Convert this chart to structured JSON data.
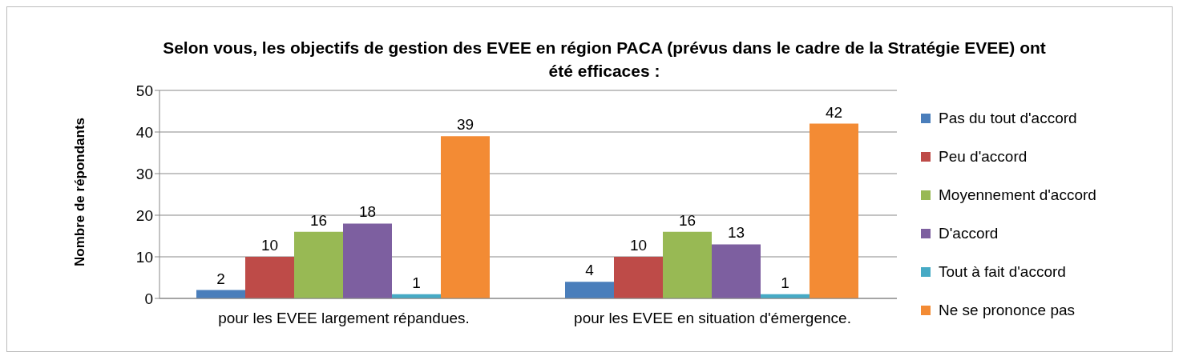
{
  "chart_data": {
    "type": "bar",
    "title": "Selon vous, les objectifs de gestion des EVEE en région PACA (prévus dans le cadre de la Stratégie EVEE) ont été efficaces :",
    "ylabel": "Nombre de répondants",
    "categories": [
      "pour les EVEE largement répandues.",
      "pour les EVEE en situation d'émergence."
    ],
    "series": [
      {
        "name": "Pas du tout d'accord",
        "color": "#4a7ebb",
        "values": [
          2,
          4
        ]
      },
      {
        "name": "Peu d'accord",
        "color": "#be4b48",
        "values": [
          10,
          10
        ]
      },
      {
        "name": "Moyennement d'accord",
        "color": "#98b954",
        "values": [
          16,
          16
        ]
      },
      {
        "name": "D'accord",
        "color": "#7d5fa0",
        "values": [
          18,
          13
        ]
      },
      {
        "name": "Tout à fait d'accord",
        "color": "#46aac5",
        "values": [
          1,
          1
        ]
      },
      {
        "name": "Ne se prononce pas",
        "color": "#f38b34",
        "values": [
          39,
          42
        ]
      }
    ],
    "ylim": [
      0,
      50
    ],
    "yticks": [
      0,
      10,
      20,
      30,
      40,
      50
    ],
    "grid": "y",
    "legend": "right",
    "data_labels": true
  }
}
